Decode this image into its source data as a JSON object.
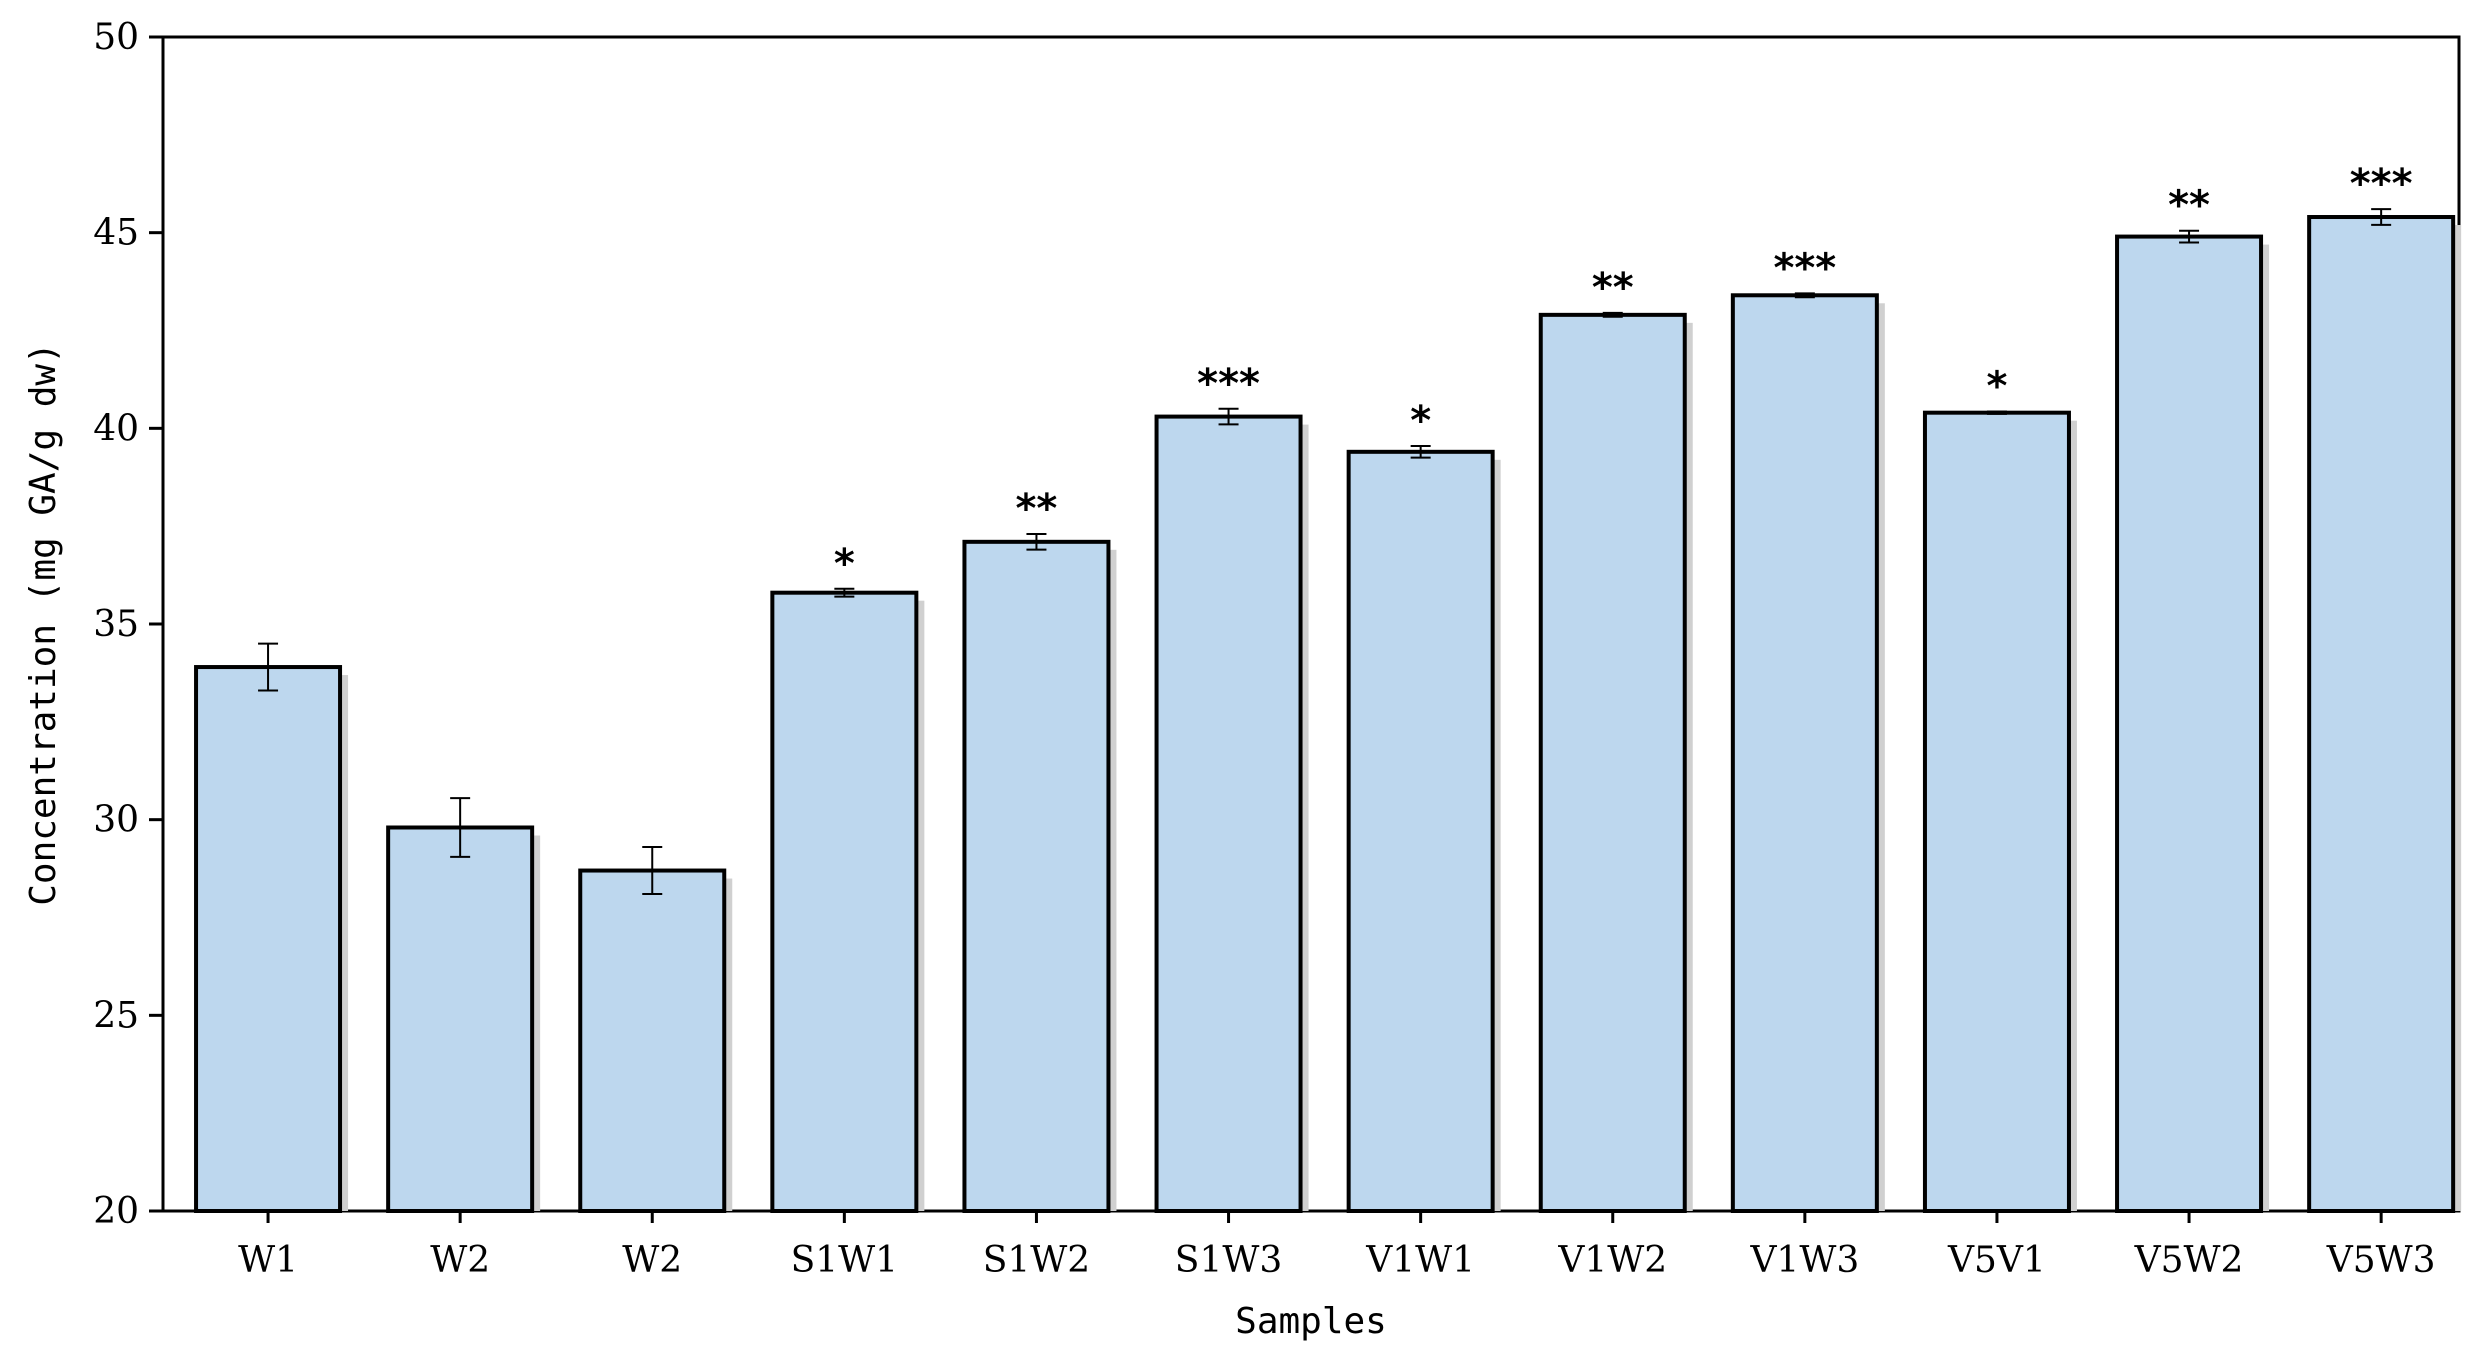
{
  "chart_data": {
    "type": "bar",
    "title": "",
    "xlabel": "Samples",
    "ylabel": "Concentration (mg GA/g dw)",
    "ylim": [
      20,
      50
    ],
    "yticks": [
      20,
      25,
      30,
      35,
      40,
      45,
      50
    ],
    "grid": false,
    "legend": "none",
    "categories": [
      "W1",
      "W2",
      "W2",
      "S1W1",
      "S1W2",
      "S1W3",
      "V1W1",
      "V1W2",
      "V1W3",
      "V5V1",
      "V5W2",
      "V5W3"
    ],
    "values": [
      33.9,
      29.8,
      28.7,
      35.8,
      37.1,
      40.3,
      39.4,
      42.9,
      43.4,
      40.4,
      44.9,
      45.4
    ],
    "errors": [
      0.6,
      0.75,
      0.6,
      0.1,
      0.2,
      0.2,
      0.15,
      0.05,
      0.05,
      0.03,
      0.15,
      0.2
    ],
    "significance": [
      "",
      "",
      "",
      "*",
      "**",
      "***",
      "*",
      "**",
      "***",
      "*",
      "**",
      "***"
    ],
    "colors": {
      "bar_fill": "#bdd7ee",
      "bar_edge": "#000000",
      "shadow": "#d0d0d0",
      "axis": "#000000"
    }
  }
}
